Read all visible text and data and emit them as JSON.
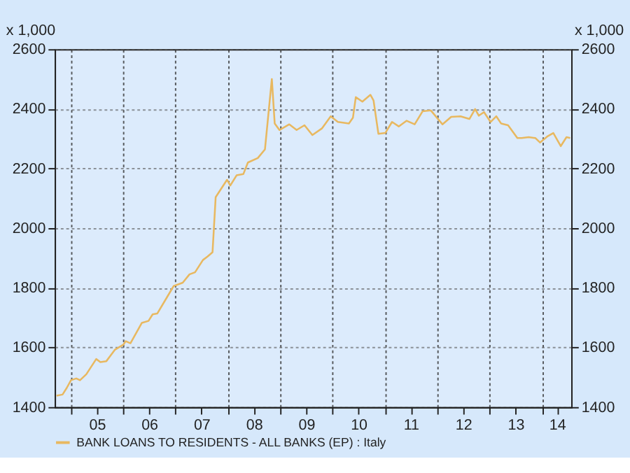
{
  "chart_data": {
    "type": "line",
    "x": [
      "2004-09-22",
      "2004-11-03",
      "2004-12-02",
      "2005-01-01",
      "2005-02-07",
      "2005-03-05",
      "2005-04-18",
      "2005-06-26",
      "2005-07-25",
      "2005-09-05",
      "2005-11-03",
      "2006-01-01",
      "2006-01-18",
      "2006-02-20",
      "2006-05-10",
      "2006-06-26",
      "2006-07-25",
      "2006-08-27",
      "2006-11-03",
      "2006-12-19",
      "2007-02-20",
      "2007-04-08",
      "2007-05-17",
      "2007-07-11",
      "2007-08-13",
      "2007-09-16",
      "2007-10-08",
      "2007-12-26",
      "2008-01-18",
      "2008-03-02",
      "2008-04-18",
      "2008-05-20",
      "2008-07-28",
      "2008-09-16",
      "2008-11-03",
      "2008-11-23",
      "2008-12-26",
      "2009-03-05",
      "2009-04-25",
      "2009-06-19",
      "2009-08-13",
      "2009-10-18",
      "2009-12-19",
      "2010-02-07",
      "2010-04-25",
      "2010-05-23",
      "2010-06-12",
      "2010-07-28",
      "2010-09-22",
      "2010-10-14",
      "2010-11-17",
      "2011-01-04",
      "2011-02-20",
      "2011-04-08",
      "2011-06-02",
      "2011-07-28",
      "2011-09-22",
      "2011-11-17",
      "2012-02-07",
      "2012-04-08",
      "2012-06-12",
      "2012-08-13",
      "2012-09-22",
      "2012-10-18",
      "2012-11-23",
      "2013-01-08",
      "2013-02-17",
      "2013-03-22",
      "2013-05-10",
      "2013-07-14",
      "2013-08-13",
      "2013-10-01",
      "2013-11-17",
      "2013-12-19",
      "2014-02-07",
      "2014-03-22",
      "2014-05-13",
      "2014-06-22",
      "2014-07-18"
    ],
    "series": [
      {
        "name": "BANK LOANS TO RESIDENTS - ALL BANKS (EP) : Italy",
        "color": "#e8b860",
        "values": [
          1438,
          1442,
          1464,
          1490,
          1496,
          1490,
          1510,
          1561,
          1551,
          1554,
          1592,
          1609,
          1621,
          1614,
          1682,
          1689,
          1711,
          1714,
          1769,
          1806,
          1817,
          1845,
          1852,
          1893,
          1905,
          1919,
          2104,
          2162,
          2143,
          2177,
          2181,
          2220,
          2235,
          2264,
          2500,
          2351,
          2329,
          2348,
          2329,
          2345,
          2312,
          2334,
          2375,
          2356,
          2351,
          2370,
          2439,
          2424,
          2447,
          2428,
          2316,
          2319,
          2356,
          2341,
          2360,
          2348,
          2392,
          2395,
          2348,
          2373,
          2375,
          2366,
          2399,
          2377,
          2389,
          2356,
          2375,
          2351,
          2345,
          2302,
          2302,
          2305,
          2302,
          2287,
          2307,
          2319,
          2275,
          2305,
          2302
        ]
      }
    ],
    "xlim": [
      "2004-09-09",
      "2014-07-25"
    ],
    "xticks": [
      {
        "value": "2005-01-01",
        "label": null
      },
      {
        "value": "2005-07-01",
        "label": "05"
      },
      {
        "value": "2006-01-01",
        "label": null
      },
      {
        "value": "2006-07-01",
        "label": "06"
      },
      {
        "value": "2007-01-01",
        "label": null
      },
      {
        "value": "2007-07-01",
        "label": "07"
      },
      {
        "value": "2008-01-01",
        "label": null
      },
      {
        "value": "2008-07-01",
        "label": "08"
      },
      {
        "value": "2009-01-01",
        "label": null
      },
      {
        "value": "2009-07-01",
        "label": "09"
      },
      {
        "value": "2010-01-01",
        "label": null
      },
      {
        "value": "2010-07-01",
        "label": "10"
      },
      {
        "value": "2011-01-01",
        "label": null
      },
      {
        "value": "2011-07-01",
        "label": "11"
      },
      {
        "value": "2012-01-01",
        "label": null
      },
      {
        "value": "2012-07-01",
        "label": "12"
      },
      {
        "value": "2013-01-01",
        "label": null
      },
      {
        "value": "2013-07-01",
        "label": "13"
      },
      {
        "value": "2014-01-01",
        "label": null
      },
      {
        "value": "2014-04-17",
        "label": "14"
      }
    ],
    "ylim": [
      1400,
      2600
    ],
    "yticks": [
      1400,
      1600,
      1800,
      2000,
      2200,
      2400,
      2600
    ],
    "y2lim": [
      1400,
      2600
    ],
    "y2ticks": [
      1400,
      1600,
      1800,
      2000,
      2200,
      2400,
      2600
    ],
    "ylabel": "x 1,000",
    "y2label": "x 1,000",
    "grid": true,
    "legend": "bottom",
    "line_style": "solid"
  }
}
